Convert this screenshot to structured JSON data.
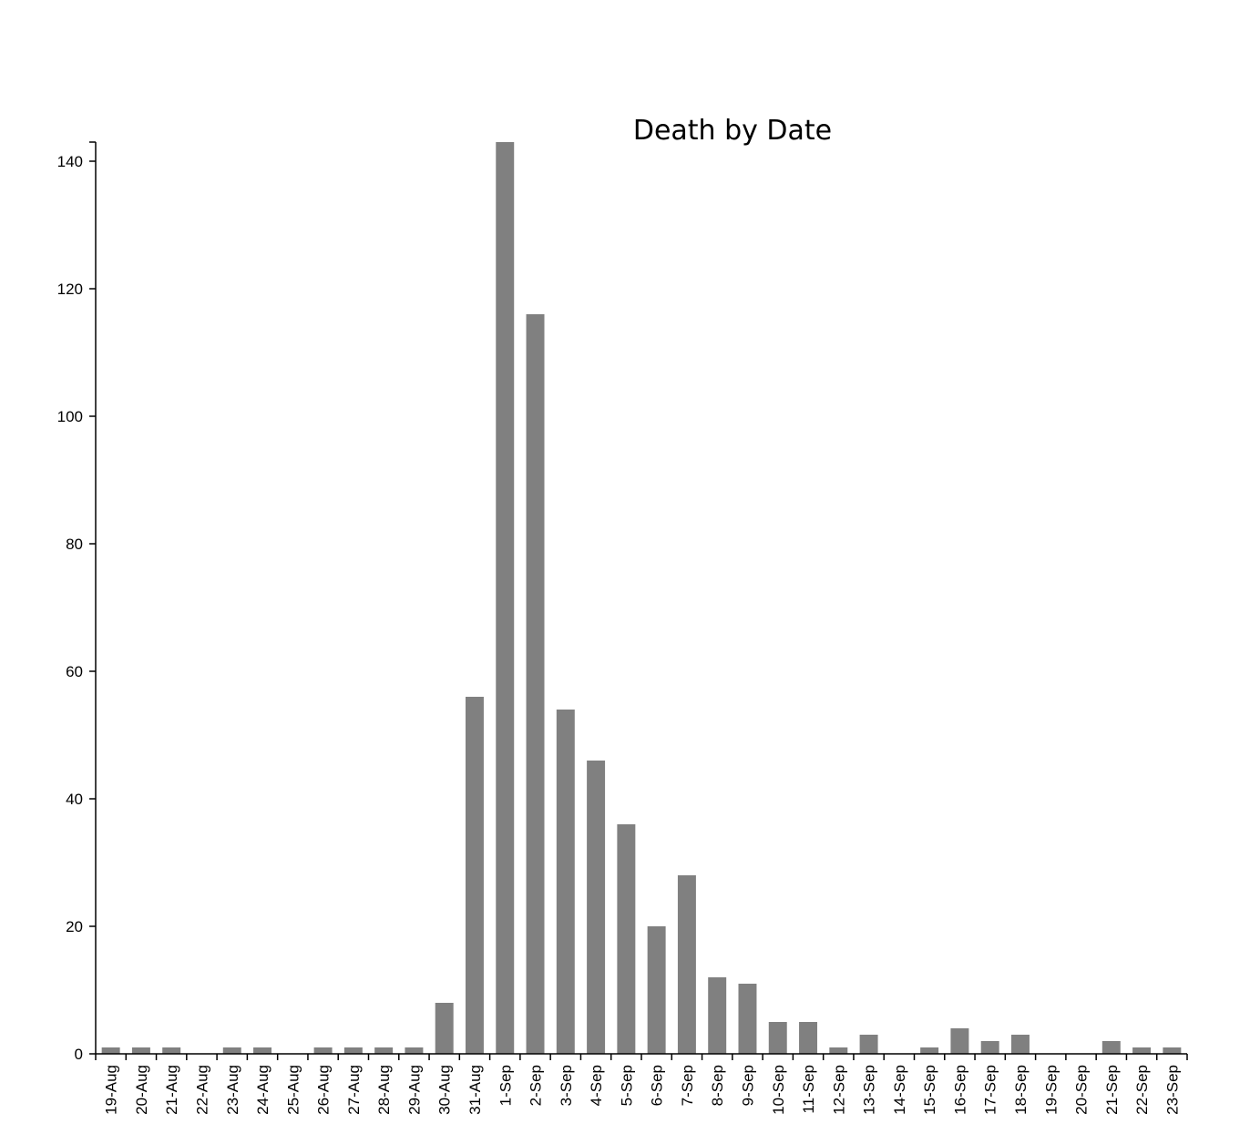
{
  "chart_data": {
    "type": "bar",
    "title": "Death by Date",
    "xlabel": "",
    "ylabel": "",
    "categories": [
      "19-Aug",
      "20-Aug",
      "21-Aug",
      "22-Aug",
      "23-Aug",
      "24-Aug",
      "25-Aug",
      "26-Aug",
      "27-Aug",
      "28-Aug",
      "29-Aug",
      "30-Aug",
      "31-Aug",
      "1-Sep",
      "2-Sep",
      "3-Sep",
      "4-Sep",
      "5-Sep",
      "6-Sep",
      "7-Sep",
      "8-Sep",
      "9-Sep",
      "10-Sep",
      "11-Sep",
      "12-Sep",
      "13-Sep",
      "14-Sep",
      "15-Sep",
      "16-Sep",
      "17-Sep",
      "18-Sep",
      "19-Sep",
      "20-Sep",
      "21-Sep",
      "22-Sep",
      "23-Sep"
    ],
    "values": [
      1,
      1,
      1,
      0,
      1,
      1,
      0,
      1,
      1,
      1,
      1,
      8,
      56,
      143,
      116,
      54,
      46,
      36,
      20,
      28,
      12,
      11,
      5,
      5,
      1,
      3,
      0,
      1,
      4,
      2,
      3,
      0,
      0,
      2,
      1,
      1
    ],
    "ylim": [
      0,
      143
    ],
    "yticks": [
      "0",
      "20",
      "40",
      "60",
      "80",
      "100",
      "120",
      "140"
    ],
    "bar_color": "#808080",
    "grid": false,
    "legend": "none"
  }
}
